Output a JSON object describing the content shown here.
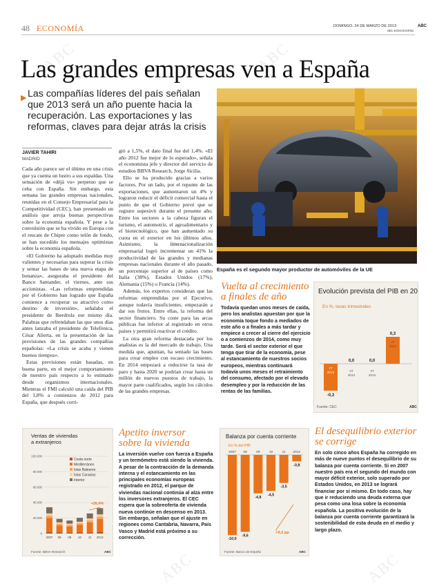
{
  "header": {
    "page_number": "48",
    "section": "ECONOMÍA",
    "date": "DOMINGO, 24 DE MARZO DE 2013",
    "brand": "ABC",
    "site": "abc.es/economia"
  },
  "watermark": "ABC",
  "headline": "Las grandes empresas ven a España",
  "subheadline": "Las compañías líderes del país señalan que 2013 será un año puente hacia la recuperación. Las exportaciones y las reformas, claves para dejar atrás la crisis",
  "byline": {
    "author": "JAVIER TAHIRI",
    "place": "MADRID"
  },
  "body_col1": [
    "Cada año parece ser el último en una crisis que ya cuenta un lustro a sus espaldas. Una sensación de «déjà vu» perpetuo que se ceba con España. Sin embargo, esta semana las grandes empresas nacionales, reunidas en el Consejo Empresarial para la Competitividad (CEC), han presentado un análisis que arroja buenas perspectivas sobre la economía española. Y pese a la convulsión que se ha vivido en Europa con el rescate de Chipre como telón de fondo, se han sucedido los mensajes optimistas sobre la economía española.",
    "«El Gobierno ha adoptado medidas muy valientes y necesarias para superar la crisis y sentar las bases de una nueva etapa de bonanza», aseguraba el presidente del Banco Santander, el viernes, ante sus accionistas. «Las reformas emprendidas por el Gobierno han logrado que España comience a recuperar su atractivo como destino de inversión», señalaba el presidente de Iberdrola ese mismo día. Palabras que refrendaban las que unos días antes lanzaba el presidente de Telefónica, César Alierta, en la presentación de las previsiones de las grandes compañías españolas: «La crisis se acaba y vienen buenos tiempos».",
    "Estas previsiones están basadas, en buena parte, en el mejor comportamiento de nuestro país respecto a lo estimado desde organismos internacionales. Mientras el FMI calculó una caída del PIB del 1,8% a comienzos de 2012 para España, que después corri-"
  ],
  "body_col2": [
    "gió a 1,5%, el dato final fue del 1,4%. «El año 2012 fue mejor de lo esperado», señala el economista jefe y director del servicio de estudios BBVA Research, Jorge Sicilia.",
    "Ello se ha producido gracias a varios factores. Por un lado, por el repunte de las exportaciones, que aumentaron un 4% y lograron reducir el déficit comercial hasta el punto de que el Gobierno prevé que se registre superávit durante el presente año. Entre los sectores a la cabeza figuran el turismo, el automotriz, el agroalimentario y el biotecnológico, que han aumentado su cuota en el exterior en los últimos años. Asimismo, la internacionalización empresarial logró incrementar un 41% la productividad de las grandes y medianas empresas nacionales durante el año pasado, un porcentaje superior al de países como Italia (38%), Estados Unidos (17%), Alemania (15%) o Francia (14%).",
    "Además, los expertos consideran que las reformas emprendidas por el Ejecutivo, aunque todavía insuficientes, empezarán a dar sus frutos. Entre ellas, la reforma del sector financiero. Su coste para las arcas públicas fue inferior al registrado en otros países y permitirá reactivar el crédito.",
    "La otra gran reforma destacada por los analistas es la del mercado de trabajo. Una medida que, apuntan, ha sentado las bases para crear empleo con escaso crecimiento. En 2014 empezará a reducirse la tasa de paro y hasta 2020 se podrían crear hasta un millón de nuevos puestos de trabajo, la mayor parte cualificados, según los cálculos de las grandes empresas."
  ],
  "photo_caption": "España es el segundo mayor productor de automóviles de la UE",
  "box_growth": {
    "title": "Vuelta al crecimiento a finales de año",
    "text": "Todavía quedan unos meses de caída, pero los analistas apuestan por que la economía toque fondo a mediados de este año o a finales a más tardar y empiece a crecer al cierre del ejercicio o a comienzos de 2014, como muy tarde. Será el sector exterior el que tenga que tirar de la economía, pese al estancamiento de nuestros socios europeos, mientras continuará todavía unos meses el retraimiento del consumo, afectado por el elevado desempleo y por la reducción de las rentas de las familias."
  },
  "box_housing": {
    "title": "Apetito inversor sobre la vivienda",
    "text": "La inversión vuelve con fuerza a España y un termómetro está siendo la vivienda. A pesar de la contracción de la demanda interna y el estancamiento en las principales economías europeas registrado en 2012, el parque de viviendas nacional continúa al alza entre los inversores extranjeros. El CEC espera que la sobreoferta de vivienda nueva continúe en descenso en 2013. Sin embargo, señalan que el ajuste en regiones como Cantabria, Navarra, País Vasco y Madrid está próximo a su corrección."
  },
  "box_deficit": {
    "title": "El desequilibrio exterior se corrige",
    "text": "En solo cinco años España ha corregido en más de nueve puntos el desequilibrio de su balanza por cuenta corriente. Si en 2007 nuestro país era el segundo del mundo con mayor déficit exterior, solo superado por Estados Unidos, en 2013 se logrará financiar por sí mismo. En todo caso, hay que ir reduciendo una deuda externa que pesa como una losa sobre la economía española. La positiva evolución de la balanza por cuenta corriente garantizará la sostenibilidad de esta deuda en el medio y largo plazo."
  },
  "chart_data": [
    {
      "type": "bar",
      "title": "Evolución prevista del PIB en 2013",
      "subtitle": "En %, tasas trimestrales",
      "categories": [
        "1T 2013",
        "2T 2013",
        "3T 2013",
        "4T 2013"
      ],
      "tick_labels": [
        {
          "top": "1T",
          "bottom": "2013"
        },
        {
          "top": "2T",
          "bottom": "2013"
        },
        {
          "top": "3T",
          "bottom": "2013"
        },
        {
          "top": "4T",
          "bottom": "2013"
        }
      ],
      "values": [
        -0.3,
        0.0,
        0.0,
        0.3
      ],
      "value_labels": [
        "-0,3",
        "0,0",
        "0,0",
        "0,3"
      ],
      "source": "Fuente: CEC",
      "brand": "ABC",
      "colors": {
        "neg": "#e8731b",
        "pos": "#e8731b"
      }
    },
    {
      "type": "bar",
      "title": "Ventas de viviendas a extranjeros",
      "categories": [
        "2007",
        "08",
        "09",
        "10",
        "11",
        "2012"
      ],
      "yticks": [
        "100.000",
        "80.000",
        "60.000",
        "40.000",
        "20.000",
        "0"
      ],
      "ylim": [
        0,
        100000
      ],
      "series": [
        {
          "name": "Costa norte",
          "color": "#b2502b",
          "values": [
            2000,
            1500,
            1200,
            1300,
            1500,
            1800
          ]
        },
        {
          "name": "Mediterráneo",
          "color": "#e8731b",
          "values": [
            18000,
            9000,
            8000,
            10000,
            13000,
            17000
          ]
        },
        {
          "name": "Islas Baleares",
          "color": "#f4a35c",
          "values": [
            3000,
            2000,
            1800,
            2000,
            2500,
            3000
          ]
        },
        {
          "name": "Islas Canarias",
          "color": "#f9cfa2",
          "values": [
            3000,
            2000,
            1800,
            2000,
            2500,
            3000
          ]
        },
        {
          "name": "Interior",
          "color": "#7a6b5c",
          "values": [
            8000,
            4500,
            4000,
            5000,
            6500,
            8000
          ]
        }
      ],
      "annotation": "+26,4%",
      "source": "Fuente: BBVA Research",
      "brand": "ABC"
    },
    {
      "type": "bar",
      "title": "Balanza por cuenta corriente",
      "subtitle": "En % del PIB",
      "categories": [
        "2007",
        "08",
        "09",
        "10",
        "11",
        "2012"
      ],
      "values": [
        -10.0,
        -9.6,
        -4.8,
        -4.5,
        -3.5,
        -0.8
      ],
      "value_labels": [
        "-10,0",
        "-9,6",
        "-4,8",
        "-4,5",
        "-3,5",
        "-0,8"
      ],
      "annotation": "+9,2 pp",
      "source": "Fuente: Banco de España",
      "brand": "ABC",
      "colors": {
        "bar": "#e8731b"
      }
    }
  ]
}
